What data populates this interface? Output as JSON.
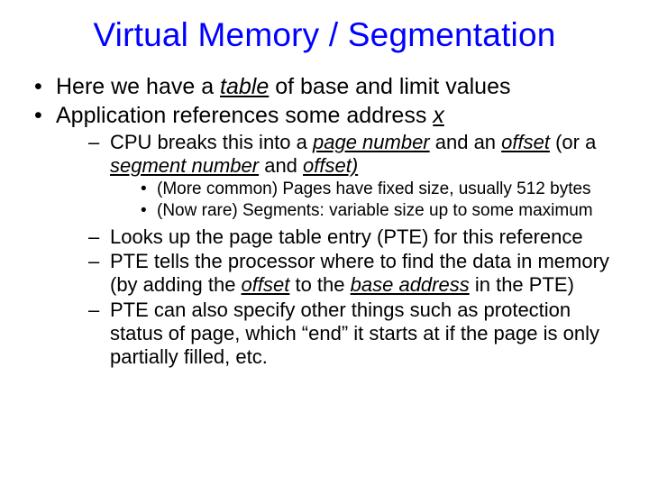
{
  "title_color": "#0000ff",
  "background_color": "#ffffff",
  "text_color": "#000000",
  "title": "Virtual Memory / Segmentation",
  "b1_pre": "Here we have a ",
  "b1_u": "table",
  "b1_post": " of base and limit values",
  "b2_pre": "Application references some address ",
  "b2_u": "x",
  "s1_pre": "CPU breaks this into a ",
  "s1_i1": "page number",
  "s1_mid1": " and an ",
  "s1_i2": "offset",
  "s1_mid2": " (or a ",
  "s1_i3": "segment number",
  "s1_mid3": " and ",
  "s1_i4": "offset)",
  "t1": "(More common) Pages have fixed size, usually 512 bytes",
  "t2": "(Now rare) Segments: variable size up to some maximum",
  "s2": "Looks up the page table entry (PTE) for this reference",
  "s3_pre": "PTE tells the processor where to find the data in memory (by adding the ",
  "s3_i1": "offset",
  "s3_mid1": " to the ",
  "s3_i2": "base address",
  "s3_post": " in the PTE)",
  "s4": "PTE can also specify other things such as protection status of page, which “end” it starts at if the page is only partially filled, etc."
}
